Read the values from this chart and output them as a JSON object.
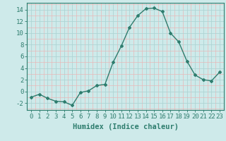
{
  "x": [
    0,
    1,
    2,
    3,
    4,
    5,
    6,
    7,
    8,
    9,
    10,
    11,
    12,
    13,
    14,
    15,
    16,
    17,
    18,
    19,
    20,
    21,
    22,
    23
  ],
  "y": [
    -1,
    -0.5,
    -1.2,
    -1.7,
    -1.8,
    -2.4,
    -0.2,
    0.1,
    1.0,
    1.2,
    5.0,
    7.8,
    11.0,
    13.0,
    14.2,
    14.3,
    13.7,
    10.0,
    8.5,
    5.2,
    2.8,
    2.0,
    1.8,
    3.3
  ],
  "line_color": "#2e7d6e",
  "marker": "D",
  "marker_size": 2.0,
  "bg_color": "#ceeaea",
  "grid_color_major": "#aed4d4",
  "grid_color_minor": "#e8b8b8",
  "xlabel": "Humidex (Indice chaleur)",
  "xlim": [
    -0.5,
    23.5
  ],
  "ylim": [
    -3.2,
    15.2
  ],
  "yticks": [
    -2,
    0,
    2,
    4,
    6,
    8,
    10,
    12,
    14
  ],
  "xticks": [
    0,
    1,
    2,
    3,
    4,
    5,
    6,
    7,
    8,
    9,
    10,
    11,
    12,
    13,
    14,
    15,
    16,
    17,
    18,
    19,
    20,
    21,
    22,
    23
  ],
  "tick_label_fontsize": 6.5,
  "xlabel_fontsize": 7.5,
  "tick_color": "#2e7d6e",
  "spine_color": "#2e7d6e",
  "font_family": "monospace"
}
